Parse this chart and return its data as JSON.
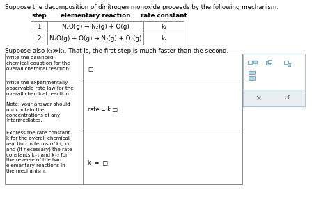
{
  "title": "Suppose the decomposition of dinitrogen monoxide proceeds by the following mechanism:",
  "table_headers": [
    "step",
    "elementary reaction",
    "rate constant"
  ],
  "table_rows": [
    [
      "1",
      "N₂O(g) → N₂(g) + O(g)",
      "k₁"
    ],
    [
      "2",
      "N₂O(g) + O(g) → N₂(g) + O₂(g)",
      "k₂"
    ]
  ],
  "suppose_text": "Suppose also k₁≫k₂. That is, the first step is much faster than the second.",
  "row1_label": "Write the balanced\nchemical equation for the\noverall chemical reaction:",
  "row1_answer": "□",
  "row2_label": "Write the experimentally-\nobservable rate law for the\noverall chemical reaction.\n\nNote: your answer should\nnot contain the\nconcentrations of any\nintermediates.",
  "row2_answer": "rate = k □",
  "row3_label": "Express the rate constant\nk for the overall chemical\nreaction in terms of k₂, k₂,\nand (if necessary) the rate\nconstants k₋₁ and k₋₂ for\nthe reverse of the two\nelementary reactions in\nthe mechanism.",
  "row3_answer": "k  =  □",
  "bg_color": "#ffffff",
  "table_border_color": "#888888",
  "text_color": "#000000",
  "side_top_bg": "#f0f8ff",
  "side_top_border": "#b0c8d8",
  "side_bot_bg": "#e8eef2",
  "side_bot_border": "#b0c8d8",
  "icon_edge": "#7aadbe",
  "icon_face": "#b8d8e8"
}
